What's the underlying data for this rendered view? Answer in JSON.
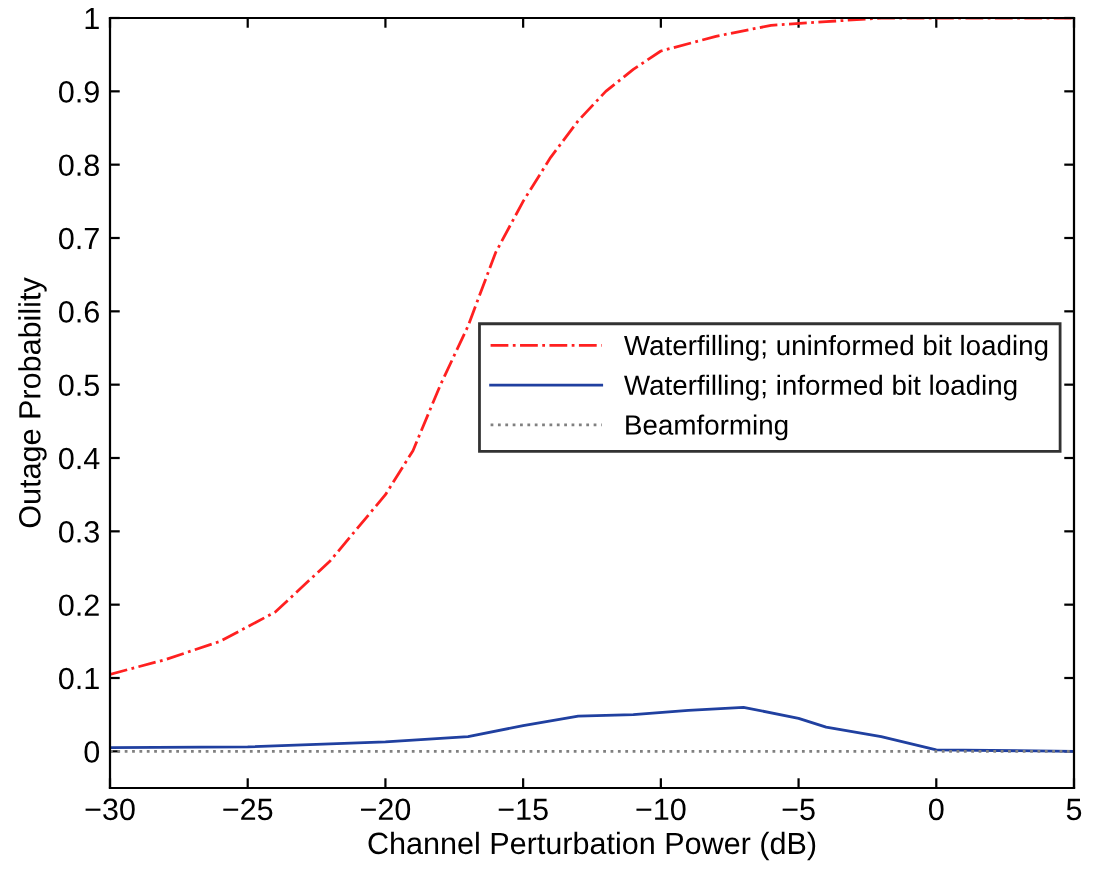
{
  "chart_data": {
    "type": "line",
    "xlabel": "Channel Perturbation Power (dB)",
    "ylabel": "Outage Probability",
    "xlim": [
      -30,
      5
    ],
    "xticks": [
      {
        "value": -30,
        "label": "−30"
      },
      {
        "value": -25,
        "label": "−25"
      },
      {
        "value": -20,
        "label": "−20"
      },
      {
        "value": -15,
        "label": "−15"
      },
      {
        "value": -10,
        "label": "−10"
      },
      {
        "value": -5,
        "label": "−5"
      },
      0,
      5
    ],
    "ylim": [
      -0.05,
      1
    ],
    "yticks": [
      0,
      0.1,
      0.2,
      0.3,
      0.4,
      0.5,
      0.6,
      0.7,
      0.8,
      0.9,
      1
    ],
    "grid": false,
    "legend": "right",
    "series": [
      {
        "name": "Waterfilling; uninformed bit loading",
        "color": "#ff2020",
        "line_style": "dashdot",
        "x": [
          -30,
          -28,
          -26,
          -24,
          -22,
          -20,
          -19,
          -18,
          -17,
          -16,
          -15,
          -14,
          -13,
          -12,
          -11,
          -10,
          -8,
          -6,
          -4,
          -2,
          5
        ],
        "values": [
          0.105,
          0.125,
          0.15,
          0.19,
          0.26,
          0.35,
          0.41,
          0.5,
          0.58,
          0.68,
          0.75,
          0.81,
          0.86,
          0.9,
          0.93,
          0.955,
          0.975,
          0.99,
          0.995,
          1.0,
          1.0
        ]
      },
      {
        "name": "Waterfilling; informed bit loading",
        "color": "#2040a0",
        "line_style": "solid",
        "x": [
          -30,
          -25,
          -20,
          -17,
          -15,
          -13,
          -11,
          -9,
          -7,
          -5,
          -4,
          -2,
          0,
          5
        ],
        "values": [
          0.005,
          0.006,
          0.013,
          0.02,
          0.035,
          0.048,
          0.05,
          0.056,
          0.06,
          0.045,
          0.033,
          0.02,
          0.002,
          0.0
        ]
      },
      {
        "name": "Beamforming",
        "color": "#808080",
        "line_style": "dotted",
        "x": [
          -30,
          5
        ],
        "values": [
          0,
          0
        ]
      }
    ]
  }
}
